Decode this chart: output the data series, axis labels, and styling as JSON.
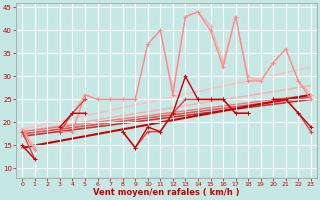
{
  "xlabel": "Vent moyen/en rafales ( km/h )",
  "xlim": [
    -0.5,
    23.5
  ],
  "ylim": [
    8,
    46
  ],
  "yticks": [
    10,
    15,
    20,
    25,
    30,
    35,
    40,
    45
  ],
  "xticks": [
    0,
    1,
    2,
    3,
    4,
    5,
    6,
    7,
    8,
    9,
    10,
    11,
    12,
    13,
    14,
    15,
    16,
    17,
    18,
    19,
    20,
    21,
    22,
    23
  ],
  "bg_color": "#c5e8e5",
  "grid_color": "#afd8d5",
  "series": [
    {
      "x": [
        0,
        1,
        2,
        3,
        4,
        5,
        6,
        7,
        8,
        9,
        10,
        11,
        12,
        13,
        14,
        15,
        16,
        17,
        18,
        19,
        20,
        21,
        22,
        23
      ],
      "y": [
        18.5,
        14.5,
        null,
        19,
        22,
        26,
        25,
        25,
        25,
        25,
        37,
        40,
        27,
        43,
        44,
        41,
        33,
        43,
        30,
        29,
        33,
        36,
        29,
        26
      ],
      "color": "#ffaaaa",
      "lw": 0.9,
      "marker": "+",
      "ms": 3,
      "zorder": 2
    },
    {
      "x": [
        0,
        1,
        2,
        3,
        4,
        5,
        6,
        7,
        8,
        9,
        10,
        11,
        12,
        13,
        14,
        15,
        16,
        17,
        18,
        19,
        20,
        21,
        22,
        23
      ],
      "y": [
        18,
        14,
        null,
        18,
        18,
        26,
        25,
        25,
        25,
        25,
        37,
        40,
        26,
        43,
        44,
        40,
        32,
        43,
        29,
        29,
        33,
        36,
        29,
        25
      ],
      "color": "#ff8888",
      "lw": 0.9,
      "marker": "+",
      "ms": 3,
      "zorder": 2
    },
    {
      "x": [
        0,
        1,
        2,
        3,
        4,
        5,
        6,
        7,
        8,
        9,
        10,
        11,
        12,
        13,
        14,
        15,
        16,
        17,
        18,
        19,
        20,
        21,
        22,
        23
      ],
      "y": [
        18,
        12,
        null,
        18,
        22,
        25,
        null,
        null,
        18,
        14.5,
        18,
        18,
        22,
        25,
        25,
        25,
        25,
        22,
        22,
        null,
        25,
        25,
        22,
        18
      ],
      "color": "#dd4444",
      "lw": 1.0,
      "marker": "+",
      "ms": 3,
      "zorder": 4
    },
    {
      "x": [
        0,
        1,
        2,
        3,
        4,
        5,
        6,
        7,
        8,
        9,
        10,
        11,
        12,
        13,
        14,
        15,
        16,
        17,
        18,
        19,
        20,
        21,
        22,
        23
      ],
      "y": [
        15,
        12,
        null,
        19,
        22,
        22,
        null,
        null,
        18,
        14.5,
        19,
        18,
        22,
        30,
        25,
        25,
        25,
        22,
        22,
        null,
        25,
        25,
        22,
        19
      ],
      "color": "#cc0000",
      "lw": 1.0,
      "marker": "+",
      "ms": 3,
      "zorder": 5
    }
  ],
  "trend_lines": [
    {
      "x0": 0,
      "y0": 18.5,
      "x1": 23,
      "y1": 32,
      "color": "#ffbbbb",
      "lw": 1.0
    },
    {
      "x0": 0,
      "y0": 18.0,
      "x1": 23,
      "y1": 28,
      "color": "#ffaaaa",
      "lw": 1.0
    },
    {
      "x0": 0,
      "y0": 18.0,
      "x1": 23,
      "y1": 26,
      "color": "#ee7777",
      "lw": 1.0
    },
    {
      "x0": 0,
      "y0": 17.5,
      "x1": 23,
      "y1": 25.5,
      "color": "#dd5555",
      "lw": 1.2
    },
    {
      "x0": 0,
      "y0": 17.0,
      "x1": 23,
      "y1": 25.0,
      "color": "#cc3333",
      "lw": 1.2
    },
    {
      "x0": 0,
      "y0": 14.5,
      "x1": 23,
      "y1": 26.0,
      "color": "#cc0000",
      "lw": 1.5
    }
  ]
}
